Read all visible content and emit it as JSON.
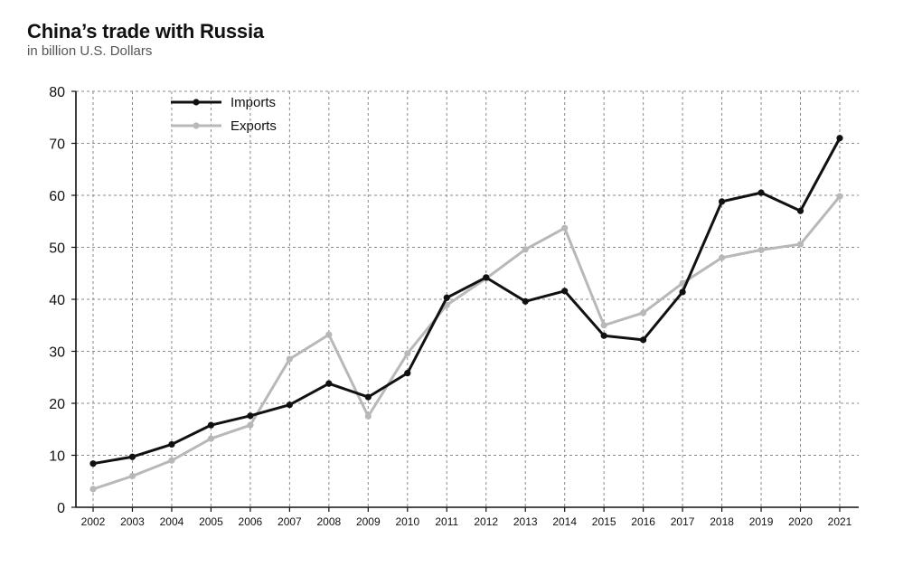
{
  "chart_data": {
    "type": "line",
    "title": "China’s trade with Russia",
    "subtitle": "in billion U.S. Dollars",
    "xlabel": "",
    "ylabel": "",
    "categories": [
      "2002",
      "2003",
      "2004",
      "2005",
      "2006",
      "2007",
      "2008",
      "2009",
      "2010",
      "2011",
      "2012",
      "2013",
      "2014",
      "2015",
      "2016",
      "2017",
      "2018",
      "2019",
      "2020",
      "2021"
    ],
    "yticks": [
      0,
      10,
      20,
      30,
      40,
      50,
      60,
      70,
      80
    ],
    "ylim": [
      0,
      80
    ],
    "grid": true,
    "legend_position": "top-left",
    "series": [
      {
        "name": "Imports",
        "color": "#111111",
        "values": [
          8.4,
          9.7,
          12.1,
          15.8,
          17.6,
          19.7,
          23.8,
          21.2,
          25.8,
          40.3,
          44.2,
          39.6,
          41.6,
          33.0,
          32.2,
          41.4,
          58.8,
          60.5,
          57.0,
          71.0
        ]
      },
      {
        "name": "Exports",
        "color": "#b8b8b8",
        "values": [
          3.5,
          6.0,
          9.0,
          13.2,
          15.8,
          28.5,
          33.2,
          17.5,
          29.6,
          38.9,
          44.0,
          49.6,
          53.7,
          35.0,
          37.4,
          43.1,
          48.0,
          49.5,
          50.6,
          59.8
        ]
      }
    ]
  }
}
